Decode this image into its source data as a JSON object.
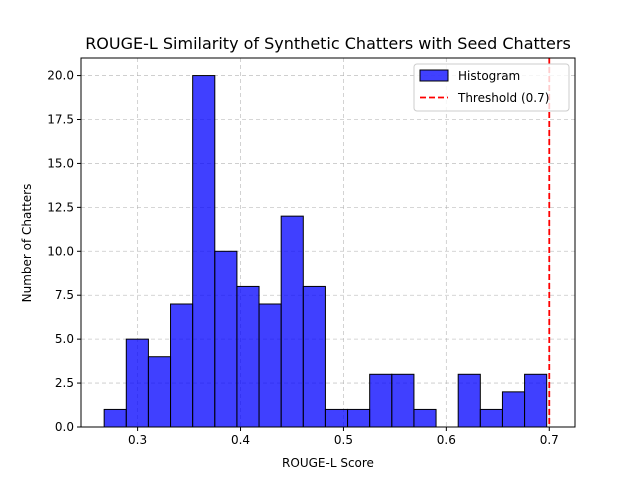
{
  "chart_data": {
    "type": "histogram",
    "title": "ROUGE-L Similarity of Synthetic Chatters with Seed Chatters",
    "xlabel": "ROUGE-L Score",
    "ylabel": "Number of Chatters",
    "xlim": [
      0.245,
      0.725
    ],
    "ylim": [
      0,
      21
    ],
    "grid": true,
    "legend_position": "top-right",
    "bins": [
      {
        "start": 0.2675,
        "end": 0.289,
        "count": 1
      },
      {
        "start": 0.289,
        "end": 0.3105,
        "count": 5
      },
      {
        "start": 0.3105,
        "end": 0.332,
        "count": 4
      },
      {
        "start": 0.332,
        "end": 0.3535,
        "count": 7
      },
      {
        "start": 0.3535,
        "end": 0.375,
        "count": 20
      },
      {
        "start": 0.375,
        "end": 0.3965,
        "count": 10
      },
      {
        "start": 0.3965,
        "end": 0.418,
        "count": 8
      },
      {
        "start": 0.418,
        "end": 0.4395,
        "count": 7
      },
      {
        "start": 0.4395,
        "end": 0.461,
        "count": 12
      },
      {
        "start": 0.461,
        "end": 0.4825,
        "count": 8
      },
      {
        "start": 0.4825,
        "end": 0.504,
        "count": 1
      },
      {
        "start": 0.504,
        "end": 0.5255,
        "count": 1
      },
      {
        "start": 0.5255,
        "end": 0.547,
        "count": 3
      },
      {
        "start": 0.547,
        "end": 0.5685,
        "count": 3
      },
      {
        "start": 0.5685,
        "end": 0.59,
        "count": 1
      },
      {
        "start": 0.59,
        "end": 0.6115,
        "count": 0
      },
      {
        "start": 0.6115,
        "end": 0.633,
        "count": 3
      },
      {
        "start": 0.633,
        "end": 0.6545,
        "count": 1
      },
      {
        "start": 0.6545,
        "end": 0.676,
        "count": 2
      },
      {
        "start": 0.676,
        "end": 0.6975,
        "count": 3
      }
    ],
    "x_ticks": [
      "0.3",
      "0.4",
      "0.5",
      "0.6",
      "0.7"
    ],
    "y_ticks": [
      "0.0",
      "2.5",
      "5.0",
      "7.5",
      "10.0",
      "12.5",
      "15.0",
      "17.5",
      "20.0"
    ],
    "threshold": {
      "x": 0.7,
      "label": "Threshold (0.7)",
      "color": "#ff0000"
    },
    "series": [
      {
        "name": "Histogram",
        "color": "#0000ff",
        "edge_color": "#000000",
        "alpha": 0.75
      }
    ]
  }
}
